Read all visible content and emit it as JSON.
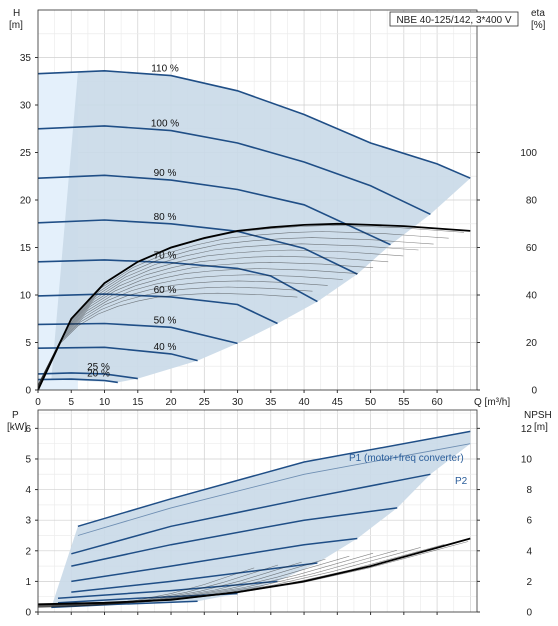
{
  "chart_data": [
    {
      "type": "line",
      "title": "NBE 40-125/142, 3*400 V",
      "xlabel": "Q [m³/h]",
      "x_ticks": [
        0,
        5,
        10,
        15,
        20,
        25,
        30,
        35,
        40,
        45,
        50,
        55,
        60
      ],
      "xlim": [
        0,
        66
      ],
      "ylabel_left": [
        "H",
        "[m]"
      ],
      "ylim_left": [
        0,
        40
      ],
      "y_ticks_left": [
        0,
        5,
        10,
        15,
        20,
        25,
        30,
        35
      ],
      "ylabel_right": [
        "eta",
        "[%]"
      ],
      "ylim_right": [
        0,
        160
      ],
      "y_ticks_right": [
        0,
        20,
        40,
        60,
        80,
        100
      ],
      "grid": true,
      "series": [
        {
          "label": "110 %",
          "x": [
            0,
            10,
            20,
            30,
            40,
            50,
            60,
            65
          ],
          "y": [
            33.3,
            33.6,
            33.1,
            31.5,
            29.0,
            26.0,
            23.8,
            22.3
          ]
        },
        {
          "label": "100 %",
          "x": [
            0,
            10,
            20,
            30,
            40,
            50,
            59
          ],
          "y": [
            27.5,
            27.8,
            27.3,
            26.0,
            24.0,
            21.5,
            18.5
          ]
        },
        {
          "label": "90 %",
          "x": [
            0,
            10,
            20,
            30,
            40,
            53
          ],
          "y": [
            22.3,
            22.6,
            22.1,
            21.1,
            19.5,
            15.3
          ]
        },
        {
          "label": "80 %",
          "x": [
            0,
            10,
            20,
            30,
            40,
            48
          ],
          "y": [
            17.6,
            17.9,
            17.5,
            16.7,
            14.9,
            12.2
          ]
        },
        {
          "label": "70 %",
          "x": [
            0,
            10,
            20,
            30,
            35,
            42
          ],
          "y": [
            13.5,
            13.7,
            13.4,
            12.8,
            12.0,
            9.3
          ]
        },
        {
          "label": "60 %",
          "x": [
            0,
            10,
            20,
            30,
            36
          ],
          "y": [
            9.9,
            10.1,
            9.8,
            9.0,
            7.0
          ]
        },
        {
          "label": "50 %",
          "x": [
            0,
            10,
            20,
            30
          ],
          "y": [
            6.9,
            7.0,
            6.6,
            4.9
          ]
        },
        {
          "label": "40 %",
          "x": [
            0,
            10,
            20,
            24
          ],
          "y": [
            4.4,
            4.5,
            3.8,
            3.1
          ]
        },
        {
          "label": "25 %",
          "x": [
            0,
            5,
            10,
            15
          ],
          "y": [
            1.7,
            1.8,
            1.7,
            1.2
          ]
        },
        {
          "label": "20 %",
          "x": [
            0,
            5,
            10,
            12
          ],
          "y": [
            1.1,
            1.15,
            1.0,
            0.8
          ]
        }
      ],
      "efficiency_series": {
        "label": "eta",
        "x": [
          0,
          5,
          10,
          15,
          20,
          25,
          30,
          35,
          40,
          45,
          50,
          55,
          60,
          65
        ],
        "y": [
          0,
          30,
          45,
          54,
          60,
          64,
          67,
          68.5,
          69.5,
          70,
          69.5,
          69,
          68,
          67
        ]
      }
    },
    {
      "type": "line",
      "xlim": [
        0,
        66
      ],
      "ylabel_left": [
        "P",
        "[kW]"
      ],
      "ylim_left": [
        0,
        6.6
      ],
      "y_ticks_left": [
        0,
        1,
        2,
        3,
        4,
        5,
        6
      ],
      "ylabel_right": [
        "NPSH",
        "[m]"
      ],
      "ylim_right": [
        0,
        13.2
      ],
      "y_ticks_right": [
        0,
        2,
        4,
        6,
        8,
        10,
        12
      ],
      "grid": true,
      "series": [
        {
          "label": "P1 (motor+freq converter)",
          "x": [
            6,
            20,
            40,
            65
          ],
          "y": [
            2.8,
            3.7,
            4.9,
            5.9
          ]
        },
        {
          "label": "P2",
          "x": [
            6,
            20,
            40,
            65
          ],
          "y": [
            2.5,
            3.4,
            4.5,
            5.5
          ]
        },
        {
          "label": "",
          "x": [
            5,
            20,
            40,
            59
          ],
          "y": [
            1.9,
            2.8,
            3.7,
            4.5
          ]
        },
        {
          "label": "",
          "x": [
            5,
            20,
            40,
            54
          ],
          "y": [
            1.5,
            2.2,
            3.0,
            3.4
          ]
        },
        {
          "label": "",
          "x": [
            5,
            20,
            40,
            48
          ],
          "y": [
            1.0,
            1.5,
            2.2,
            2.4
          ]
        },
        {
          "label": "",
          "x": [
            5,
            20,
            42
          ],
          "y": [
            0.65,
            1.0,
            1.6
          ]
        },
        {
          "label": "",
          "x": [
            3,
            20,
            36
          ],
          "y": [
            0.45,
            0.7,
            1.0
          ]
        },
        {
          "label": "",
          "x": [
            3,
            15,
            30
          ],
          "y": [
            0.3,
            0.45,
            0.6
          ]
        },
        {
          "label": "",
          "x": [
            2,
            12,
            24
          ],
          "y": [
            0.15,
            0.25,
            0.35
          ]
        }
      ],
      "npsh_series": {
        "label": "NPSH",
        "x": [
          0,
          10,
          20,
          30,
          40,
          50,
          60,
          65
        ],
        "y": [
          0.5,
          0.6,
          0.8,
          1.3,
          2.0,
          3.0,
          4.2,
          4.8
        ]
      }
    }
  ]
}
